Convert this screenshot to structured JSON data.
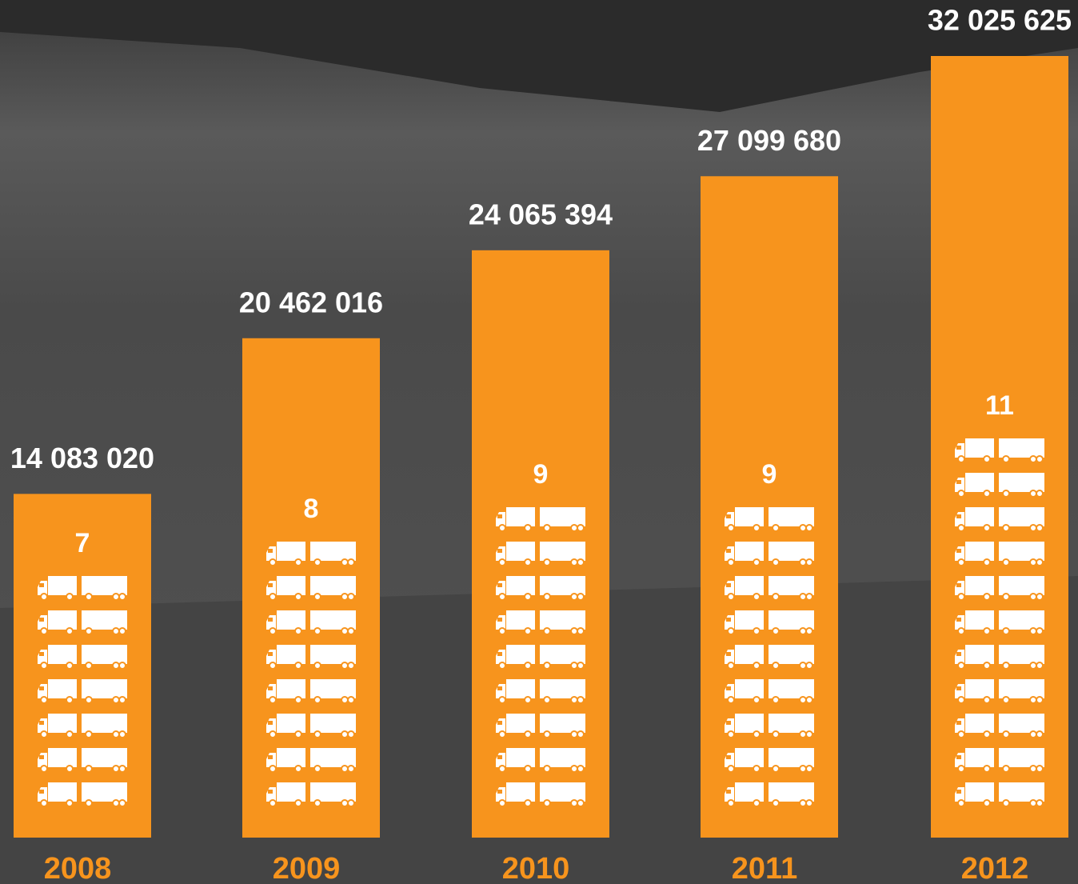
{
  "chart_data": {
    "type": "bar",
    "categories": [
      "2008",
      "2009",
      "2010",
      "2011",
      "2012"
    ],
    "values": [
      14083020,
      20462016,
      24065394,
      27099680,
      32025625
    ],
    "value_labels": [
      "14 083 020",
      "20 462 016",
      "24 065 394",
      "27 099 680",
      "32 025 625"
    ],
    "truck_counts": [
      7,
      8,
      9,
      9,
      11
    ],
    "color": "#f7941d"
  }
}
